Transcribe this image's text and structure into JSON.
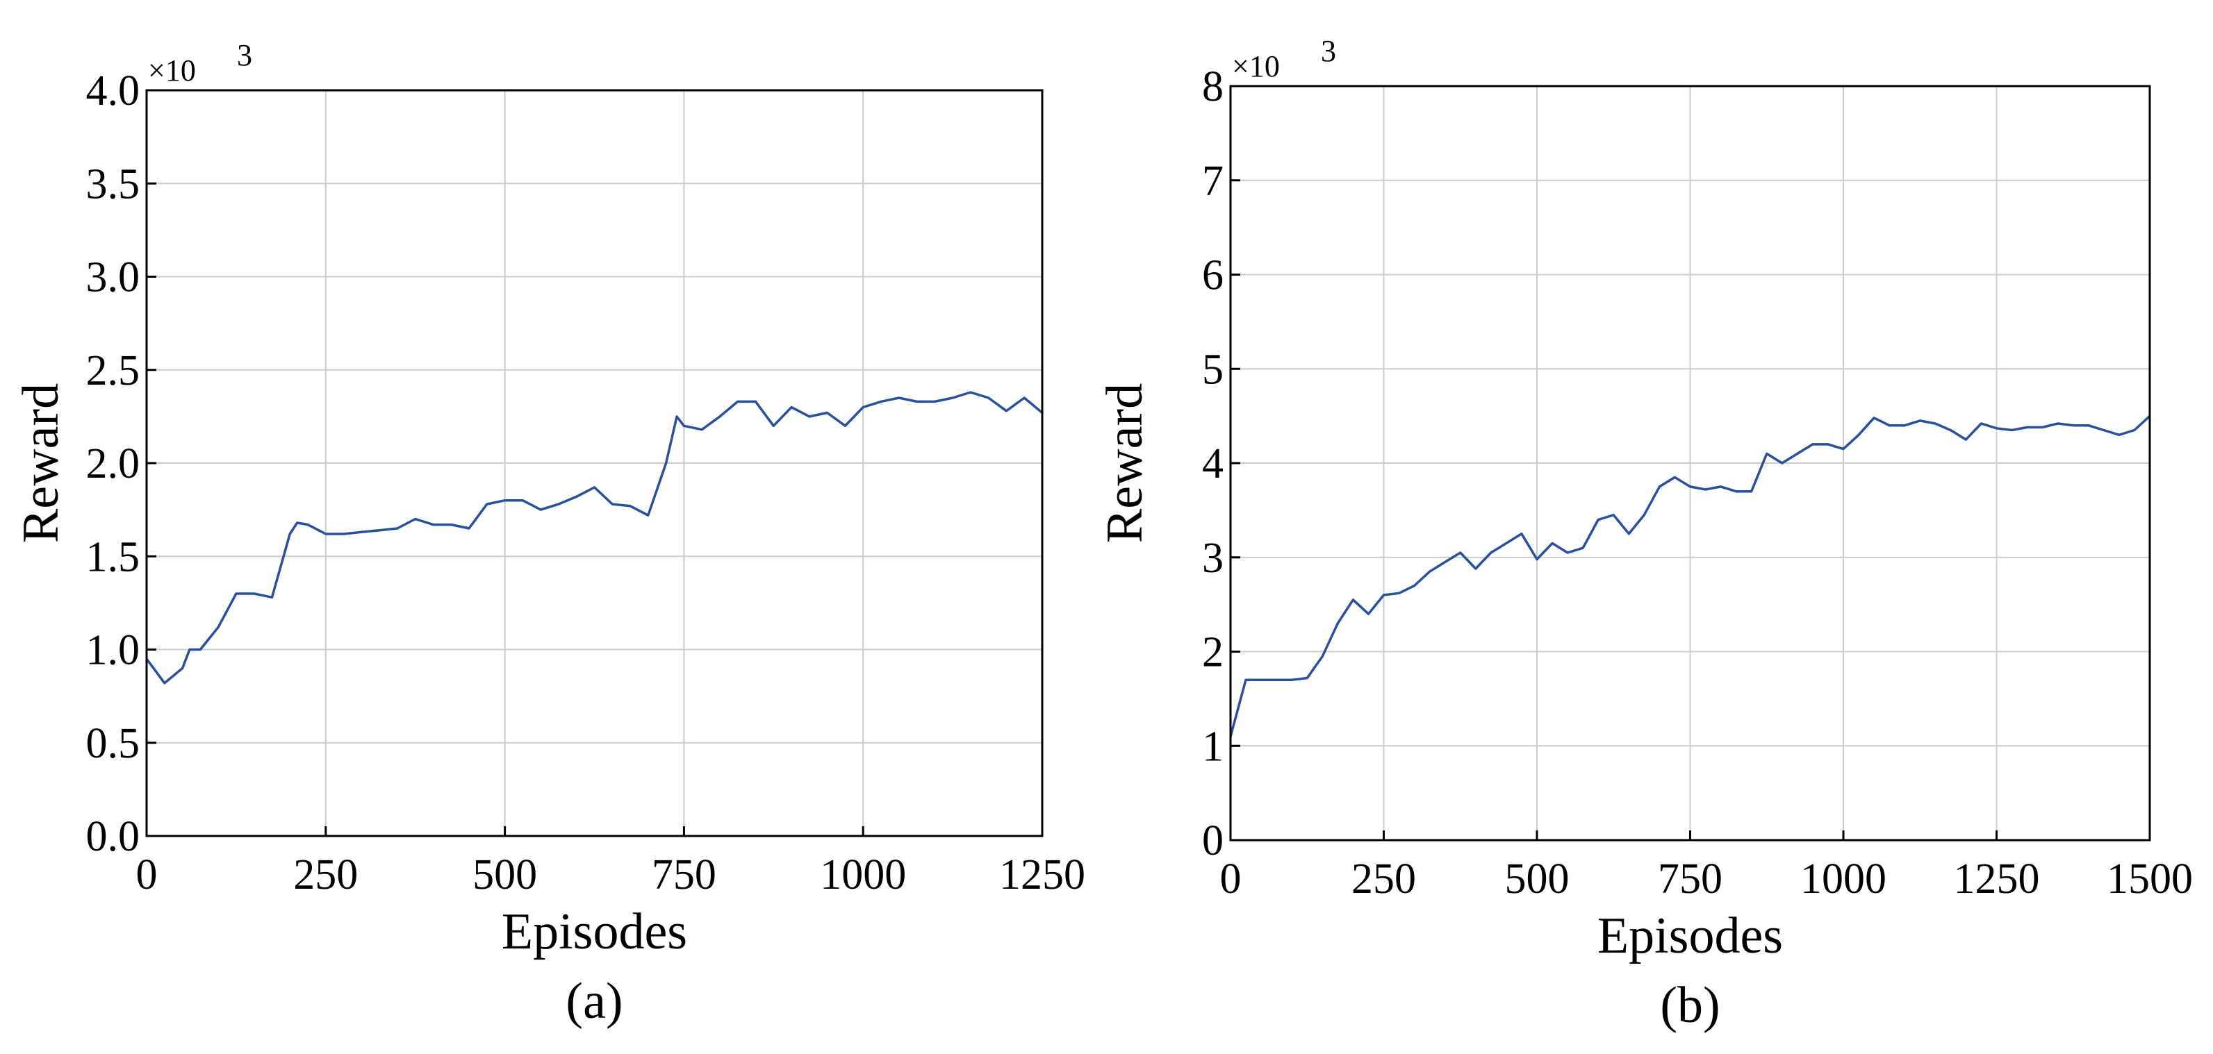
{
  "chart_data": [
    {
      "type": "line",
      "y_multiplier_base": "×10",
      "y_multiplier_exponent": "3",
      "x_label": "Episodes",
      "y_label": "Reward",
      "caption": "(a)",
      "color": "#2a4f9b",
      "grid": true,
      "xlim": [
        0,
        1250
      ],
      "xticks": [
        0,
        250,
        500,
        750,
        1000,
        1250
      ],
      "ylim": [
        0,
        4
      ],
      "yticks": [
        {
          "value": 0,
          "label": "0.0"
        },
        0.5,
        {
          "value": 1,
          "label": "1.0"
        },
        1.5,
        {
          "value": 2,
          "label": "2.0"
        },
        2.5,
        {
          "value": 3,
          "label": "3.0"
        },
        3.5,
        {
          "value": 4,
          "label": "4.0"
        }
      ],
      "x": [
        0,
        25,
        50,
        60,
        75,
        100,
        125,
        150,
        175,
        200,
        210,
        225,
        250,
        275,
        300,
        325,
        350,
        375,
        400,
        425,
        450,
        475,
        500,
        525,
        550,
        575,
        600,
        625,
        650,
        675,
        700,
        725,
        740,
        750,
        775,
        800,
        825,
        850,
        875,
        900,
        925,
        950,
        975,
        1000,
        1025,
        1050,
        1075,
        1100,
        1125,
        1150,
        1175,
        1200,
        1225,
        1250
      ],
      "values": [
        0.95,
        0.82,
        0.9,
        1.0,
        1.0,
        1.12,
        1.3,
        1.3,
        1.28,
        1.62,
        1.68,
        1.67,
        1.62,
        1.62,
        1.63,
        1.64,
        1.65,
        1.7,
        1.67,
        1.67,
        1.65,
        1.78,
        1.8,
        1.8,
        1.75,
        1.78,
        1.82,
        1.87,
        1.78,
        1.77,
        1.72,
        2.0,
        2.25,
        2.2,
        2.18,
        2.25,
        2.33,
        2.33,
        2.2,
        2.3,
        2.25,
        2.27,
        2.2,
        2.3,
        2.33,
        2.35,
        2.33,
        2.33,
        2.35,
        2.38,
        2.35,
        2.28,
        2.35,
        2.27
      ]
    },
    {
      "type": "line",
      "y_multiplier_base": "×10",
      "y_multiplier_exponent": "3",
      "x_label": "Episodes",
      "y_label": "Reward",
      "caption": "(b)",
      "color": "#2a4f9b",
      "grid": true,
      "xlim": [
        0,
        1500
      ],
      "xticks": [
        0,
        250,
        500,
        750,
        1000,
        1250,
        1500
      ],
      "ylim": [
        0,
        8
      ],
      "yticks": [
        0,
        1,
        2,
        3,
        4,
        5,
        6,
        7,
        8
      ],
      "x": [
        0,
        25,
        50,
        75,
        100,
        125,
        150,
        175,
        200,
        225,
        250,
        275,
        300,
        325,
        350,
        375,
        400,
        425,
        450,
        475,
        500,
        525,
        550,
        575,
        600,
        625,
        650,
        675,
        700,
        725,
        750,
        775,
        800,
        825,
        850,
        875,
        900,
        925,
        950,
        975,
        1000,
        1025,
        1050,
        1075,
        1100,
        1125,
        1150,
        1175,
        1200,
        1225,
        1250,
        1275,
        1300,
        1325,
        1350,
        1375,
        1400,
        1425,
        1450,
        1475,
        1500
      ],
      "values": [
        1.1,
        1.7,
        1.7,
        1.7,
        1.7,
        1.72,
        1.95,
        2.3,
        2.55,
        2.4,
        2.6,
        2.62,
        2.7,
        2.85,
        2.95,
        3.05,
        2.88,
        3.05,
        3.15,
        3.25,
        2.98,
        3.15,
        3.05,
        3.1,
        3.4,
        3.45,
        3.25,
        3.45,
        3.75,
        3.85,
        3.75,
        3.72,
        3.75,
        3.7,
        3.7,
        4.1,
        4.0,
        4.1,
        4.2,
        4.2,
        4.15,
        4.3,
        4.48,
        4.4,
        4.4,
        4.45,
        4.42,
        4.35,
        4.25,
        4.42,
        4.37,
        4.35,
        4.38,
        4.38,
        4.42,
        4.4,
        4.4,
        4.35,
        4.3,
        4.35,
        4.5
      ]
    }
  ]
}
